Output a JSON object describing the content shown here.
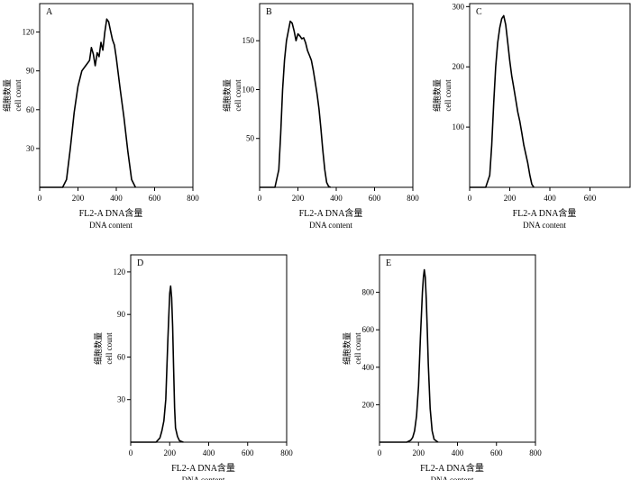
{
  "chart_data": [
    {
      "id": "A",
      "type": "line",
      "panel_label": "A",
      "xlabel": "FL2-A DNA含量",
      "xlabel_en": "DNA content",
      "ylabel": "细胞数量",
      "ylabel_en": "cell count",
      "x_ticks": [
        0,
        200,
        400,
        600,
        800
      ],
      "y_ticks": [
        30,
        60,
        90,
        120
      ],
      "xlim": [
        0,
        800
      ],
      "ylim": [
        0,
        142
      ],
      "x": [
        120,
        140,
        160,
        180,
        200,
        220,
        240,
        260,
        270,
        280,
        290,
        300,
        310,
        320,
        330,
        340,
        350,
        360,
        370,
        380,
        390,
        400,
        420,
        440,
        460,
        480,
        500
      ],
      "y": [
        0,
        6,
        30,
        58,
        78,
        90,
        94,
        98,
        108,
        103,
        94,
        104,
        101,
        112,
        106,
        120,
        130,
        128,
        121,
        114,
        110,
        100,
        76,
        54,
        28,
        6,
        0
      ]
    },
    {
      "id": "B",
      "type": "line",
      "panel_label": "B",
      "xlabel": "FL2-A DNA含量",
      "xlabel_en": "DNA content",
      "ylabel": "细胞数量",
      "ylabel_en": "cell count",
      "x_ticks": [
        0,
        200,
        400,
        600,
        800
      ],
      "y_ticks": [
        50,
        100,
        150
      ],
      "xlim": [
        0,
        800
      ],
      "ylim": [
        0,
        188
      ],
      "x": [
        80,
        100,
        110,
        120,
        130,
        140,
        150,
        160,
        170,
        180,
        190,
        200,
        210,
        220,
        230,
        240,
        250,
        260,
        270,
        280,
        290,
        300,
        310,
        320,
        330,
        340,
        350,
        360,
        370
      ],
      "y": [
        0,
        18,
        55,
        100,
        130,
        150,
        160,
        170,
        168,
        160,
        150,
        157,
        155,
        152,
        153,
        148,
        140,
        135,
        130,
        120,
        108,
        95,
        80,
        60,
        38,
        18,
        5,
        1,
        0
      ]
    },
    {
      "id": "C",
      "type": "line",
      "panel_label": "C",
      "xlabel": "FL2-A DNA含量",
      "xlabel_en": "DNA content",
      "ylabel": "细胞数量",
      "ylabel_en": "cell count",
      "x_ticks": [
        0,
        200,
        400,
        600
      ],
      "y_ticks": [
        100,
        200,
        300
      ],
      "xlim": [
        0,
        800
      ],
      "ylim": [
        0,
        305
      ],
      "x": [
        80,
        100,
        110,
        120,
        130,
        140,
        150,
        160,
        170,
        180,
        190,
        200,
        210,
        220,
        230,
        240,
        250,
        260,
        270,
        280,
        290,
        300,
        310,
        320
      ],
      "y": [
        0,
        20,
        70,
        140,
        200,
        240,
        265,
        280,
        285,
        270,
        240,
        210,
        185,
        165,
        145,
        125,
        110,
        90,
        70,
        55,
        40,
        20,
        5,
        0
      ]
    },
    {
      "id": "D",
      "type": "line",
      "panel_label": "D",
      "xlabel": "FL2-A DNA含量",
      "xlabel_en": "DNA content",
      "ylabel": "细胞数量",
      "ylabel_en": "cell count",
      "x_ticks": [
        0,
        200,
        400,
        600,
        800
      ],
      "y_ticks": [
        30,
        60,
        90,
        120
      ],
      "xlim": [
        0,
        800
      ],
      "ylim": [
        0,
        132
      ],
      "x": [
        130,
        150,
        160,
        170,
        180,
        185,
        190,
        195,
        200,
        205,
        210,
        215,
        220,
        225,
        230,
        240,
        250,
        270
      ],
      "y": [
        0,
        3,
        8,
        15,
        30,
        50,
        70,
        88,
        105,
        110,
        102,
        82,
        52,
        24,
        10,
        4,
        1,
        0
      ]
    },
    {
      "id": "E",
      "type": "line",
      "panel_label": "E",
      "xlabel": "FL2-A DNA含量",
      "xlabel_en": "DNA content",
      "ylabel": "细胞数量",
      "ylabel_en": "cell count",
      "x_ticks": [
        0,
        200,
        400,
        600,
        800
      ],
      "y_ticks": [
        200,
        400,
        600,
        800
      ],
      "xlim": [
        0,
        800
      ],
      "ylim": [
        0,
        1000
      ],
      "x": [
        140,
        160,
        170,
        180,
        190,
        200,
        210,
        220,
        225,
        230,
        235,
        240,
        245,
        250,
        260,
        270,
        280,
        300
      ],
      "y": [
        0,
        10,
        25,
        60,
        140,
        300,
        560,
        800,
        880,
        920,
        880,
        760,
        600,
        420,
        180,
        60,
        15,
        0
      ]
    }
  ]
}
